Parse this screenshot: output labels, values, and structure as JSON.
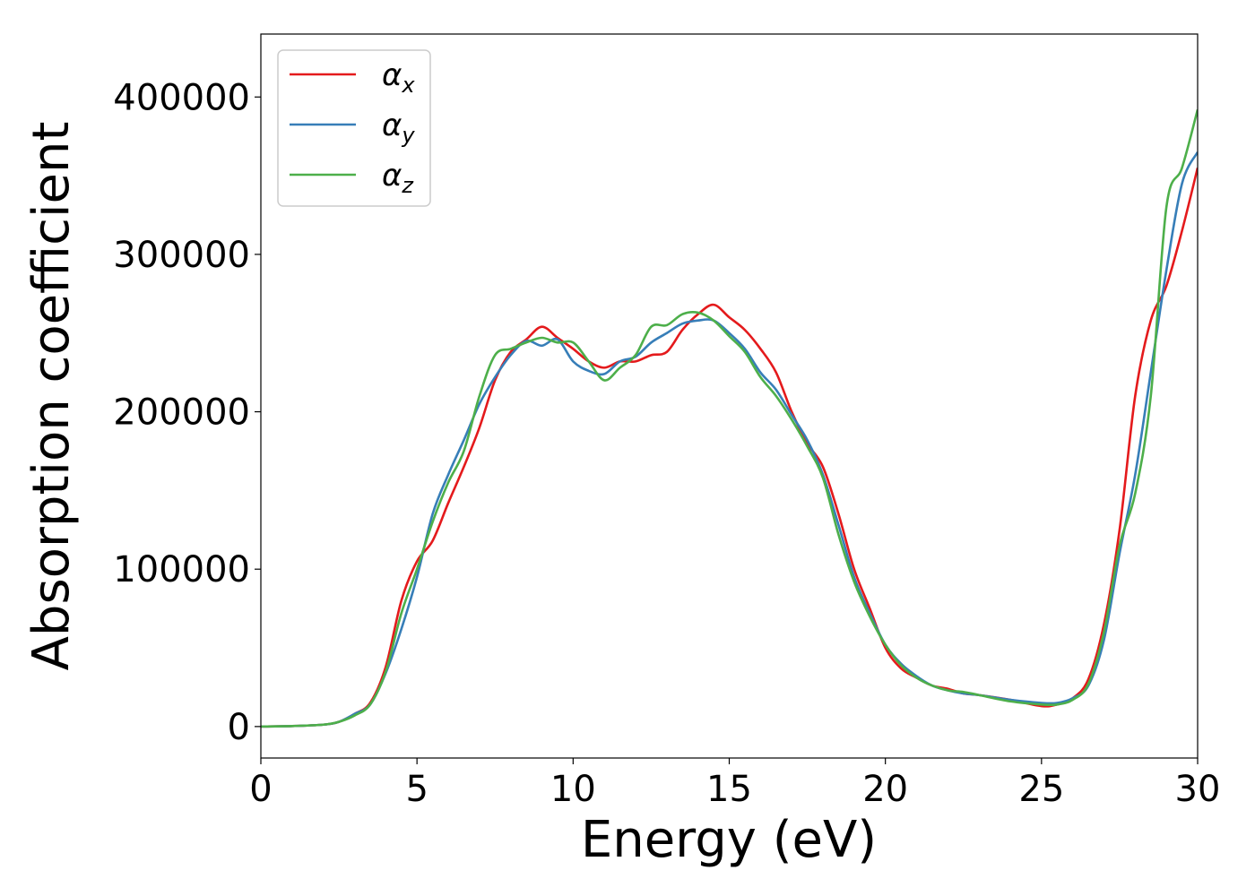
{
  "chart_data": {
    "type": "line",
    "xlabel": "Energy (eV)",
    "ylabel": "Absorption coefficient",
    "xlim": [
      0,
      30
    ],
    "ylim": [
      -20000,
      440000
    ],
    "xticks": [
      0,
      5,
      10,
      15,
      20,
      25,
      30
    ],
    "xtick_labels": [
      "0",
      "5",
      "10",
      "15",
      "20",
      "25",
      "30"
    ],
    "yticks": [
      0,
      100000,
      200000,
      300000,
      400000
    ],
    "ytick_labels": [
      "0",
      "100000",
      "200000",
      "300000",
      "400000"
    ],
    "grid": false,
    "legend_position": "top-left",
    "series": [
      {
        "name": "α_x",
        "label_main": "α",
        "label_sub": "x",
        "color": "#e41a1c",
        "x": [
          0,
          1,
          2,
          2.5,
          3,
          3.5,
          4,
          4.5,
          5,
          5.5,
          6,
          6.5,
          7,
          7.5,
          8,
          8.5,
          9,
          9.5,
          10,
          10.5,
          11,
          11.5,
          12,
          12.5,
          13,
          13.5,
          14,
          14.5,
          15,
          15.5,
          16,
          16.5,
          17,
          17.5,
          18,
          18.5,
          19,
          19.5,
          20,
          20.5,
          21,
          21.5,
          22,
          22.5,
          23,
          24,
          25,
          25.5,
          26,
          26.5,
          27,
          27.5,
          28,
          28.5,
          29,
          29.5,
          30
        ],
        "y": [
          0,
          300,
          1200,
          3000,
          8000,
          15000,
          38000,
          80000,
          105000,
          118000,
          142000,
          165000,
          190000,
          220000,
          238000,
          246000,
          254000,
          247000,
          240000,
          232000,
          228000,
          232000,
          232000,
          236000,
          238000,
          252000,
          262000,
          268000,
          260000,
          252000,
          240000,
          225000,
          200000,
          180000,
          165000,
          135000,
          100000,
          75000,
          50000,
          37000,
          31000,
          26000,
          24000,
          21000,
          20000,
          17000,
          13000,
          14000,
          18000,
          30000,
          65000,
          125000,
          210000,
          258000,
          280000,
          315000,
          355000
        ]
      },
      {
        "name": "α_y",
        "label_main": "α",
        "label_sub": "y",
        "color": "#377eb8",
        "x": [
          0,
          1,
          2,
          2.5,
          3,
          3.5,
          4,
          4.5,
          5,
          5.5,
          6,
          6.5,
          7,
          7.5,
          8,
          8.5,
          9,
          9.5,
          10,
          10.5,
          11,
          11.5,
          12,
          12.5,
          13,
          13.5,
          14,
          14.5,
          15,
          15.5,
          16,
          16.5,
          17,
          17.5,
          18,
          18.5,
          19,
          19.5,
          20,
          20.5,
          21,
          21.5,
          22,
          22.5,
          23,
          24,
          25,
          25.5,
          26,
          26.5,
          27,
          27.5,
          28,
          28.5,
          29,
          29.5,
          30
        ],
        "y": [
          0,
          300,
          1200,
          3000,
          8000,
          14000,
          34000,
          62000,
          95000,
          135000,
          160000,
          182000,
          205000,
          222000,
          236000,
          245000,
          242000,
          246000,
          232000,
          226000,
          224000,
          232000,
          235000,
          244000,
          250000,
          256000,
          258000,
          258000,
          250000,
          240000,
          225000,
          214000,
          198000,
          182000,
          160000,
          128000,
          95000,
          72000,
          52000,
          40000,
          32000,
          26000,
          23000,
          21000,
          20000,
          17000,
          15000,
          15000,
          18000,
          26000,
          55000,
          110000,
          160000,
          225000,
          290000,
          345000,
          365000
        ]
      },
      {
        "name": "α_z",
        "label_main": "α",
        "label_sub": "z",
        "color": "#4daf4a",
        "x": [
          0,
          1,
          2,
          2.5,
          3,
          3.5,
          4,
          4.5,
          5,
          5.5,
          6,
          6.5,
          7,
          7.5,
          8,
          8.5,
          9,
          9.5,
          10,
          10.5,
          11,
          11.5,
          12,
          12.5,
          13,
          13.5,
          14,
          14.5,
          15,
          15.5,
          16,
          16.5,
          17,
          17.5,
          18,
          18.5,
          19,
          19.5,
          20,
          20.5,
          21,
          21.5,
          22,
          22.5,
          23,
          24,
          25,
          25.5,
          26,
          26.5,
          27,
          27.5,
          28,
          28.5,
          29,
          29.5,
          30
        ],
        "y": [
          0,
          300,
          1200,
          3000,
          7000,
          14000,
          35000,
          72000,
          100000,
          130000,
          155000,
          175000,
          210000,
          236000,
          240000,
          244000,
          247000,
          244000,
          244000,
          232000,
          220000,
          228000,
          236000,
          254000,
          255000,
          262000,
          263000,
          258000,
          248000,
          238000,
          222000,
          210000,
          195000,
          178000,
          158000,
          122000,
          92000,
          70000,
          52000,
          39000,
          31000,
          26000,
          23000,
          22000,
          20000,
          16000,
          14000,
          14000,
          17000,
          27000,
          60000,
          115000,
          148000,
          210000,
          330000,
          355000,
          392000
        ]
      }
    ]
  }
}
